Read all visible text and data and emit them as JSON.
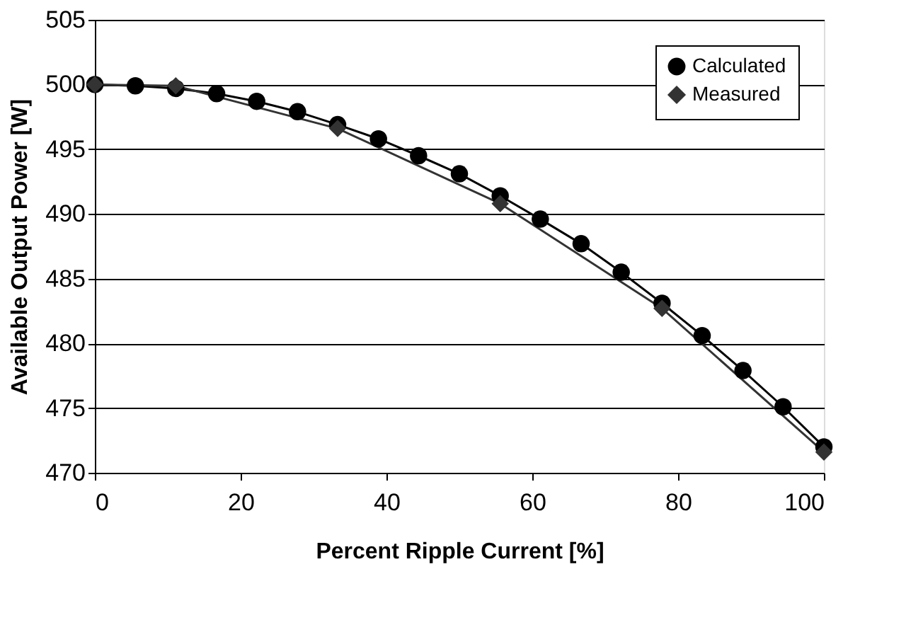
{
  "chart_data": {
    "type": "line",
    "xlabel": "Percent Ripple Current [%]",
    "ylabel": "Available Output Power [W]",
    "xlim": [
      0,
      100
    ],
    "xticks": [
      0,
      20,
      40,
      60,
      80,
      100
    ],
    "ylim": [
      470,
      505
    ],
    "yticks": [
      470,
      475,
      480,
      485,
      490,
      495,
      500,
      505
    ],
    "grid": "y",
    "legend": "top right",
    "series": [
      {
        "name": "Calculated",
        "color": "#000000",
        "marker": "circle",
        "x": [
          0,
          5.56,
          11.1,
          16.7,
          22.2,
          27.8,
          33.3,
          38.9,
          44.4,
          50,
          55.6,
          61.1,
          66.7,
          72.2,
          77.8,
          83.3,
          88.9,
          94.4,
          100
        ],
        "values": [
          500,
          499.9,
          499.7,
          499.3,
          498.7,
          497.9,
          496.9,
          495.8,
          494.5,
          493.1,
          491.4,
          489.6,
          487.7,
          485.5,
          483.1,
          480.6,
          477.9,
          475.1,
          472.0
        ]
      },
      {
        "name": "Measured",
        "color": "#333333",
        "marker": "diamond",
        "x": [
          0,
          11.1,
          33.3,
          55.6,
          77.8,
          100
        ],
        "values": [
          500,
          499.9,
          496.6,
          490.8,
          482.7,
          471.6
        ]
      }
    ]
  }
}
